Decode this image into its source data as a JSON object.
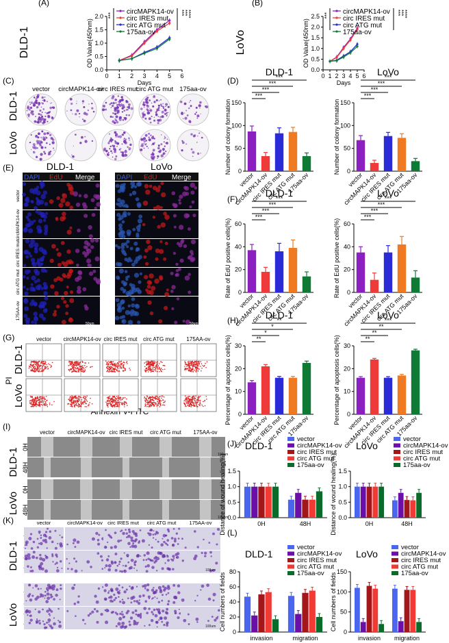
{
  "colors": {
    "purple": "#8c1fbf",
    "red": "#ee3b39",
    "blue": "#2a2ad6",
    "orange": "#f07a22",
    "green": "#0f7a35",
    "darkpurple": "#6b0fa8",
    "maroon": "#a3161a",
    "wound_blue": "#4a66ee",
    "wound_red": "#f23a35",
    "wound_green": "#0b6b2a",
    "dapi": "#2020b8",
    "edu": "#c01818",
    "merge": "#8a2a9a",
    "lovo_dapi": "#2a55b0",
    "colony": "#7a3ab0"
  },
  "panels": {
    "A": "(A)",
    "B": "(B)",
    "C": "(C)",
    "D": "(D)",
    "E": "(E)",
    "F": "(F)",
    "G": "(G)",
    "H": "(H)",
    "I": "(I)",
    "J": "(J)",
    "K": "(K)",
    "L": "(L)"
  },
  "groups": [
    "vector",
    "circMAPK14-ov",
    "circ IRES mut",
    "circ ATG mut",
    "175aa-ov"
  ],
  "group_headers_c": [
    "vector",
    "circMAPK14-ov",
    "circ IRES mut",
    "circ ATG mut",
    "175aa-ov"
  ],
  "group_headers_g": [
    "vector",
    "circMAPK14-ov",
    "circ IRES mut",
    "circ ATG mut",
    "175AA-ov"
  ],
  "group_headers_i": [
    "vector",
    "circMAPK14-ov",
    "circ IRES mut",
    "circ ATG mut",
    "175AA-ov"
  ],
  "group_headers_k": [
    "vector",
    "circMAPK14-ov",
    "circ IRES mut",
    "circ ATG mut",
    "175AA-ov"
  ],
  "row_labels_e": [
    "vector",
    "circMAPK14-ov",
    "circ IRES mut",
    "circ ATG mut",
    "175AA-ov"
  ],
  "cells": {
    "dlD1": "DLD-1",
    "lovo": "LoVo"
  },
  "stain_labels": [
    "DAPI",
    "EdU",
    "Merge"
  ],
  "scale_bar_e": "50um",
  "scale_bar_i": "100um",
  "scale_bar_k": "100um",
  "time_labels": [
    "0H",
    "48H"
  ],
  "k_rows": [
    "invasion",
    "migration"
  ],
  "g_axis": {
    "y": "PI",
    "x": "Annexin V-FITC"
  },
  "sig": {
    "three": "***",
    "two": "**",
    "one": "*"
  },
  "chart_data": [
    {
      "id": "A",
      "type": "line",
      "title": "DLD-1",
      "xlabel": "Days",
      "ylabel": "OD Value(450nm)",
      "x": [
        1,
        2,
        3,
        4,
        5
      ],
      "xlim": [
        0,
        6
      ],
      "ylim": [
        0,
        2.0
      ],
      "xticks": [
        "0",
        "1",
        "2",
        "3",
        "4",
        "5",
        "6"
      ],
      "yticks": [
        "0.0",
        "0.5",
        "1.0",
        "1.5",
        "2.0"
      ],
      "series": [
        {
          "name": "circMAPK14-ov",
          "color": "#8c1fbf",
          "values": [
            0.35,
            0.55,
            1.05,
            1.5,
            1.85
          ]
        },
        {
          "name": "circ IRES mut",
          "color": "#ee3b39",
          "values": [
            0.35,
            0.52,
            1.0,
            1.45,
            1.75
          ]
        },
        {
          "name": "circ ATG mut",
          "color": "#2a2ad6",
          "values": [
            0.35,
            0.42,
            0.65,
            0.85,
            1.2
          ]
        },
        {
          "name": "175aa-ov",
          "color": "#0f7a35",
          "values": [
            0.35,
            0.42,
            0.62,
            0.8,
            1.15
          ]
        }
      ],
      "sig": [
        "***",
        "***",
        "****"
      ]
    },
    {
      "id": "B",
      "type": "line",
      "title": "LoVo",
      "xlabel": "Days",
      "ylabel": "OD Value(450nm)",
      "x": [
        1,
        2,
        3,
        4,
        5
      ],
      "xlim": [
        0,
        6
      ],
      "ylim": [
        0,
        2.5
      ],
      "xticks": [
        "0",
        "1",
        "2",
        "3",
        "4",
        "5",
        "6"
      ],
      "yticks": [
        "0.0",
        "0.5",
        "1.0",
        "1.5",
        "2.0",
        "2.5"
      ],
      "series": [
        {
          "name": "circMAPK14-ov",
          "color": "#8c1fbf",
          "values": [
            0.4,
            0.6,
            1.05,
            1.45,
            1.95
          ]
        },
        {
          "name": "circ IRES mut",
          "color": "#ee3b39",
          "values": [
            0.4,
            0.58,
            1.0,
            1.4,
            1.9
          ]
        },
        {
          "name": "circ ATG mut",
          "color": "#2a2ad6",
          "values": [
            0.4,
            0.45,
            0.65,
            0.85,
            1.2
          ]
        },
        {
          "name": "175aa-ov",
          "color": "#0f7a35",
          "values": [
            0.4,
            0.43,
            0.6,
            0.8,
            1.1
          ]
        }
      ],
      "sig": [
        "***",
        "***",
        "****"
      ]
    },
    {
      "id": "D1",
      "type": "bar",
      "title": "DLD-1",
      "ylabel": "Number of colony formation",
      "ylim": [
        0,
        150
      ],
      "yticks": [
        "0",
        "50",
        "100",
        "150"
      ],
      "categories": [
        "vector",
        "circMAPK14-ov",
        "circ IRES mut",
        "circ ATG mut",
        "175aa-ov"
      ],
      "values": [
        87,
        33,
        83,
        86,
        33
      ],
      "errors": [
        12,
        8,
        12,
        10,
        7
      ]
    },
    {
      "id": "D2",
      "type": "bar",
      "title": "LoVo",
      "ylabel": "Number of colony formation",
      "ylim": [
        0,
        150
      ],
      "yticks": [
        "0",
        "50",
        "100",
        "150"
      ],
      "categories": [
        "vector",
        "circMAPK14-ov",
        "circ IRES mut",
        "circ ATG mut",
        "175aa-ov"
      ],
      "values": [
        68,
        18,
        77,
        73,
        22
      ],
      "errors": [
        10,
        6,
        8,
        9,
        6
      ]
    },
    {
      "id": "F1",
      "type": "bar",
      "title": "DLD-1",
      "ylabel": "Rate of EdU positive cells(%)",
      "ylim": [
        0,
        60
      ],
      "yticks": [
        "0",
        "20",
        "40",
        "60"
      ],
      "categories": [
        "vector",
        "circMAPK14-ov",
        "circ IRES mut",
        "circ ATG mut",
        "175aa-ov"
      ],
      "values": [
        37,
        18,
        36,
        39,
        14
      ],
      "errors": [
        5,
        4,
        7,
        7,
        4
      ]
    },
    {
      "id": "F2",
      "type": "bar",
      "title": "LoVo",
      "ylabel": "Rate of EdU positive cells(%)",
      "ylim": [
        0,
        60
      ],
      "yticks": [
        "0",
        "20",
        "40",
        "60"
      ],
      "categories": [
        "vector",
        "circMAPK14-ov",
        "circ IRES mut",
        "circ ATG mut",
        "175aa-ov"
      ],
      "values": [
        35,
        11,
        35,
        42,
        13
      ],
      "errors": [
        5,
        6,
        6,
        7,
        6
      ]
    },
    {
      "id": "H1",
      "type": "bar",
      "title": "DLD-1",
      "ylabel": "Percentage of apoptosis cells(%)",
      "ylim": [
        0,
        30
      ],
      "yticks": [
        "0",
        "10",
        "20",
        "30"
      ],
      "categories": [
        "vector",
        "circMAPK14-ov",
        "circ IRES mut",
        "circ ATG mut",
        "175aa-ov"
      ],
      "values": [
        14,
        21,
        16,
        16,
        22.5
      ],
      "errors": [
        0.8,
        0.8,
        0.6,
        0.6,
        0.8
      ]
    },
    {
      "id": "H2",
      "type": "bar",
      "title": "LoVo",
      "ylabel": "Percentage of apoptosis cells(%)",
      "ylim": [
        0,
        30
      ],
      "yticks": [
        "0",
        "10",
        "20",
        "30"
      ],
      "categories": [
        "vector",
        "circMAPK14-ov",
        "circ IRES mut",
        "circ ATG mut",
        "175aa-ov"
      ],
      "values": [
        16,
        24,
        16,
        17,
        28
      ],
      "errors": [
        0.5,
        0.5,
        0.5,
        0.5,
        0.5
      ]
    },
    {
      "id": "J1",
      "type": "bar",
      "title": "DLD-1",
      "ylabel": "Distance of wound healing(%)",
      "ylim": [
        0,
        1.5
      ],
      "yticks": [
        "0.0",
        "0.5",
        "1.0",
        "1.5"
      ],
      "categories": [
        "0H",
        "48H"
      ],
      "series": [
        {
          "name": "vector",
          "color": "#4a66ee",
          "values": [
            1.0,
            0.58
          ]
        },
        {
          "name": "circMAPK14-ov",
          "color": "#6b0fa8",
          "values": [
            1.0,
            0.8
          ]
        },
        {
          "name": "circ IRES mut",
          "color": "#a3161a",
          "values": [
            1.0,
            0.58
          ]
        },
        {
          "name": "circ ATG mut",
          "color": "#f23a35",
          "values": [
            1.0,
            0.58
          ]
        },
        {
          "name": "175aa-ov",
          "color": "#0b6b2a",
          "values": [
            1.0,
            0.85
          ]
        }
      ]
    },
    {
      "id": "J2",
      "type": "bar",
      "title": "LoVo",
      "ylabel": "Distance of wound healing(%)",
      "ylim": [
        0,
        1.5
      ],
      "yticks": [
        "0.0",
        "0.5",
        "1.0",
        "1.5"
      ],
      "categories": [
        "0H",
        "48H"
      ],
      "series": [
        {
          "name": "vector",
          "color": "#4a66ee",
          "values": [
            1.0,
            0.56
          ]
        },
        {
          "name": "circMAPK14-ov",
          "color": "#6b0fa8",
          "values": [
            1.0,
            0.8
          ]
        },
        {
          "name": "circ IRES mut",
          "color": "#a3161a",
          "values": [
            1.0,
            0.57
          ]
        },
        {
          "name": "circ ATG mut",
          "color": "#f23a35",
          "values": [
            1.0,
            0.56
          ]
        },
        {
          "name": "175aa-ov",
          "color": "#0b6b2a",
          "values": [
            1.0,
            0.8
          ]
        }
      ]
    },
    {
      "id": "L1",
      "type": "bar",
      "title": "DLD-1",
      "ylabel": "Cell numbers of fields",
      "ylim": [
        0,
        80
      ],
      "yticks": [
        "0",
        "20",
        "40",
        "60",
        "80"
      ],
      "categories": [
        "invasion",
        "migration"
      ],
      "series": [
        {
          "name": "vector",
          "color": "#4a66ee",
          "values": [
            47,
            48
          ]
        },
        {
          "name": "circMAPK14-ov",
          "color": "#6b0fa8",
          "values": [
            22,
            24
          ]
        },
        {
          "name": "circ IRES mut",
          "color": "#a3161a",
          "values": [
            50,
            52
          ]
        },
        {
          "name": "circ ATG mut",
          "color": "#f23a35",
          "values": [
            53,
            55
          ]
        },
        {
          "name": "175aa-ov",
          "color": "#0b6b2a",
          "values": [
            17,
            20
          ]
        }
      ]
    },
    {
      "id": "L2",
      "type": "bar",
      "title": "LoVo",
      "ylabel": "Cell numbers of fields",
      "ylim": [
        0,
        150
      ],
      "yticks": [
        "0",
        "50",
        "100",
        "150"
      ],
      "categories": [
        "invasion",
        "migration"
      ],
      "series": [
        {
          "name": "vector",
          "color": "#4a66ee",
          "values": [
            110,
            108
          ]
        },
        {
          "name": "circMAPK14-ov",
          "color": "#6b0fa8",
          "values": [
            25,
            27
          ]
        },
        {
          "name": "circ IRES mut",
          "color": "#a3161a",
          "values": [
            115,
            105
          ]
        },
        {
          "name": "circ ATG mut",
          "color": "#f23a35",
          "values": [
            108,
            105
          ]
        },
        {
          "name": "175aa-ov",
          "color": "#0b6b2a",
          "values": [
            20,
            25
          ]
        }
      ]
    }
  ]
}
